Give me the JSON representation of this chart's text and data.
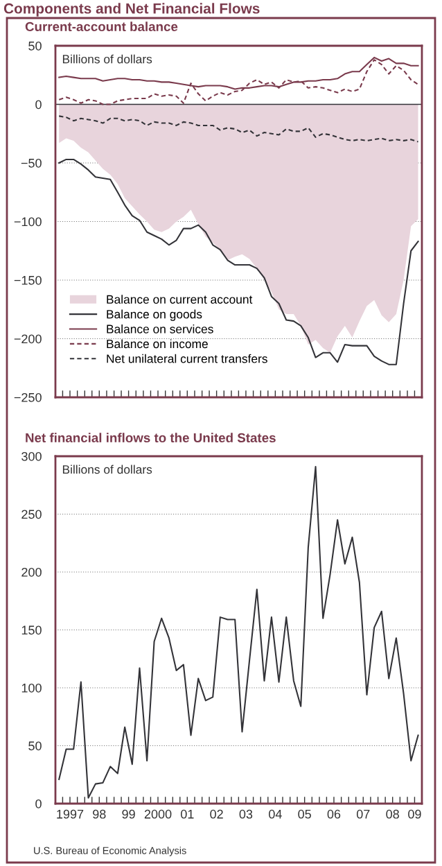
{
  "chart_data": [
    {
      "type": "line",
      "title": "Components and Net Financial Flows",
      "subtitle": "Current-account balance",
      "ylabel": "Billions of dollars",
      "x": [
        "1997-02-15",
        "1997-05-15",
        "1997-08-15",
        "1997-11-15",
        "1998-02-15",
        "1998-05-15",
        "1998-08-15",
        "1998-11-15",
        "1999-02-15",
        "1999-05-15",
        "1999-08-15",
        "1999-11-15",
        "2000-02-15",
        "2000-05-15",
        "2000-08-15",
        "2000-11-15",
        "2001-02-15",
        "2001-05-15",
        "2001-08-15",
        "2001-11-15",
        "2002-02-15",
        "2002-05-15",
        "2002-08-15",
        "2002-11-15",
        "2003-02-15",
        "2003-05-15",
        "2003-08-15",
        "2003-11-15",
        "2004-02-15",
        "2004-05-15",
        "2004-08-15",
        "2004-11-15",
        "2005-02-15",
        "2005-05-15",
        "2005-08-15",
        "2005-11-15",
        "2006-02-15",
        "2006-05-15",
        "2006-08-15",
        "2006-11-15",
        "2007-02-15",
        "2007-05-15",
        "2007-08-15",
        "2007-11-15",
        "2008-02-15",
        "2008-05-15",
        "2008-08-15",
        "2008-11-15",
        "2009-02-15",
        "2009-05-15"
      ],
      "series": [
        {
          "name": "Balance on current account",
          "type": "area",
          "color": "#e8d4dc",
          "values": [
            -33,
            -29,
            -31,
            -37,
            -41,
            -48,
            -55,
            -60,
            -68,
            -80,
            -87,
            -94,
            -100,
            -107,
            -109,
            -106,
            -100,
            -96,
            -90,
            -102,
            -113,
            -118,
            -124,
            -133,
            -130,
            -128,
            -132,
            -140,
            -150,
            -160,
            -175,
            -179,
            -179,
            -189,
            -205,
            -201,
            -208,
            -212,
            -198,
            -189,
            -199,
            -185,
            -172,
            -167,
            -180,
            -186,
            -179,
            -150,
            -104,
            -98
          ]
        },
        {
          "name": "Balance on goods",
          "type": "line",
          "color": "#333338",
          "line_style": "solid",
          "values": [
            -50,
            -47,
            -47,
            -51,
            -56,
            -62,
            -63,
            -64,
            -75,
            -86,
            -95,
            -99,
            -109,
            -112,
            -115,
            -120,
            -116,
            -106,
            -106,
            -103,
            -109,
            -120,
            -124,
            -133,
            -137,
            -137,
            -137,
            -140,
            -148,
            -164,
            -170,
            -184,
            -185,
            -189,
            -199,
            -216,
            -212,
            -212,
            -220,
            -205,
            -206,
            -206,
            -206,
            -215,
            -219,
            -222,
            -222,
            -170,
            -125,
            -117
          ]
        },
        {
          "name": "Balance on services",
          "type": "line",
          "color": "#7a3a4c",
          "line_style": "solid",
          "values": [
            23,
            24,
            23,
            22,
            22,
            22,
            20,
            21,
            22,
            22,
            21,
            21,
            20,
            20,
            19,
            19,
            18,
            17,
            16,
            15,
            16,
            16,
            16,
            15,
            13,
            14,
            14,
            15,
            16,
            16,
            15,
            17,
            19,
            19,
            20,
            20,
            21,
            21,
            22,
            26,
            28,
            28,
            34,
            40,
            37,
            39,
            35,
            35,
            33,
            33
          ]
        },
        {
          "name": "Balance on income",
          "type": "line",
          "color": "#7a3a4c",
          "line_style": "dashed",
          "values": [
            4,
            6,
            4,
            1,
            4,
            3,
            0,
            0,
            3,
            4,
            5,
            5,
            5,
            9,
            7,
            8,
            7,
            1,
            18,
            9,
            3,
            7,
            10,
            8,
            11,
            12,
            18,
            21,
            17,
            19,
            14,
            21,
            19,
            20,
            14,
            15,
            14,
            12,
            10,
            13,
            11,
            13,
            28,
            38,
            34,
            26,
            33,
            29,
            21,
            17
          ]
        },
        {
          "name": "Net unilateral current transfers",
          "type": "line",
          "color": "#333338",
          "line_style": "dashed",
          "values": [
            -10,
            -11,
            -14,
            -12,
            -13,
            -14,
            -16,
            -12,
            -12,
            -14,
            -13,
            -14,
            -18,
            -15,
            -16,
            -16,
            -18,
            -15,
            -16,
            -18,
            -18,
            -18,
            -22,
            -20,
            -21,
            -24,
            -22,
            -27,
            -24,
            -25,
            -26,
            -21,
            -23,
            -23,
            -20,
            -28,
            -25,
            -26,
            -28,
            -30,
            -31,
            -30,
            -31,
            -30,
            -29,
            -31,
            -30,
            -31,
            -30,
            -32
          ]
        }
      ],
      "xlim": [
        "1997-01-01",
        "2009-07-01"
      ],
      "ylim": [
        -250,
        50
      ],
      "yticks": [
        -250,
        -200,
        -150,
        -100,
        -50,
        0,
        50
      ],
      "xticks": [
        {
          "value": "1997-04-01",
          "label": null
        },
        {
          "value": "1997-07-01",
          "label": null
        },
        {
          "value": "1997-10-01",
          "label": null
        },
        {
          "value": "1998-01-01",
          "label": null
        },
        {
          "value": "1998-04-01",
          "label": null
        },
        {
          "value": "1998-07-01",
          "label": null
        },
        {
          "value": "1998-10-01",
          "label": null
        },
        {
          "value": "1999-01-01",
          "label": null
        },
        {
          "value": "1999-04-01",
          "label": null
        },
        {
          "value": "1999-07-01",
          "label": null
        },
        {
          "value": "1999-10-01",
          "label": null
        },
        {
          "value": "2000-01-01",
          "label": null
        },
        {
          "value": "2000-04-01",
          "label": null
        },
        {
          "value": "2000-07-01",
          "label": null
        },
        {
          "value": "2000-10-01",
          "label": null
        },
        {
          "value": "2001-01-01",
          "label": null
        },
        {
          "value": "2001-04-01",
          "label": null
        },
        {
          "value": "2001-07-01",
          "label": null
        },
        {
          "value": "2001-10-01",
          "label": null
        },
        {
          "value": "2002-01-01",
          "label": null
        },
        {
          "value": "2002-04-01",
          "label": null
        },
        {
          "value": "2002-07-01",
          "label": null
        },
        {
          "value": "2002-10-01",
          "label": null
        },
        {
          "value": "2003-01-01",
          "label": null
        },
        {
          "value": "2003-04-01",
          "label": null
        },
        {
          "value": "2003-07-01",
          "label": null
        },
        {
          "value": "2003-10-01",
          "label": null
        },
        {
          "value": "2004-01-01",
          "label": null
        },
        {
          "value": "2004-04-01",
          "label": null
        },
        {
          "value": "2004-07-01",
          "label": null
        },
        {
          "value": "2004-10-01",
          "label": null
        },
        {
          "value": "2005-01-01",
          "label": null
        },
        {
          "value": "2005-04-01",
          "label": null
        },
        {
          "value": "2005-07-01",
          "label": null
        },
        {
          "value": "2005-10-01",
          "label": null
        },
        {
          "value": "2006-01-01",
          "label": null
        },
        {
          "value": "2006-04-01",
          "label": null
        },
        {
          "value": "2006-07-01",
          "label": null
        },
        {
          "value": "2006-10-01",
          "label": null
        },
        {
          "value": "2007-01-01",
          "label": null
        },
        {
          "value": "2007-04-01",
          "label": null
        },
        {
          "value": "2007-07-01",
          "label": null
        },
        {
          "value": "2007-10-01",
          "label": null
        },
        {
          "value": "2008-01-01",
          "label": null
        },
        {
          "value": "2008-04-01",
          "label": null
        },
        {
          "value": "2008-07-01",
          "label": null
        },
        {
          "value": "2008-10-01",
          "label": null
        },
        {
          "value": "2009-01-01",
          "label": null
        },
        {
          "value": "2009-04-01",
          "label": null
        }
      ],
      "tick_labels": "y",
      "grid": "y",
      "legend": "lower left",
      "ref_lines": [
        {
          "axis": "y",
          "value": 0,
          "color": "#333338",
          "line_style": "solid"
        }
      ]
    },
    {
      "type": "line",
      "title": "Net financial inflows to the United States",
      "ylabel": "Billions of dollars",
      "x": [
        "1997-02-15",
        "1997-05-15",
        "1997-08-15",
        "1997-11-15",
        "1998-02-15",
        "1998-05-15",
        "1998-08-15",
        "1998-11-15",
        "1999-02-15",
        "1999-05-15",
        "1999-08-15",
        "1999-11-15",
        "2000-02-15",
        "2000-05-15",
        "2000-08-15",
        "2000-11-15",
        "2001-02-15",
        "2001-05-15",
        "2001-08-15",
        "2001-11-15",
        "2002-02-15",
        "2002-05-15",
        "2002-08-15",
        "2002-11-15",
        "2003-02-15",
        "2003-05-15",
        "2003-08-15",
        "2003-11-15",
        "2004-02-15",
        "2004-05-15",
        "2004-08-15",
        "2004-11-15",
        "2005-02-15",
        "2005-05-15",
        "2005-08-15",
        "2005-11-15",
        "2006-02-15",
        "2006-05-15",
        "2006-08-15",
        "2006-11-15",
        "2007-02-15",
        "2007-05-15",
        "2007-08-15",
        "2007-11-15",
        "2008-02-15",
        "2008-05-15",
        "2008-08-15",
        "2008-11-15",
        "2009-02-15",
        "2009-05-15"
      ],
      "series": [
        {
          "color": "#333338",
          "values": [
            21,
            47,
            47,
            105,
            5,
            17,
            18,
            32,
            26,
            66,
            34,
            117,
            37,
            140,
            160,
            143,
            115,
            120,
            59,
            108,
            89,
            92,
            161,
            159,
            159,
            62,
            124,
            185,
            106,
            161,
            105,
            161,
            106,
            84,
            221,
            291,
            160,
            198,
            245,
            207,
            230,
            191,
            94,
            152,
            166,
            108,
            143,
            95,
            37,
            59
          ]
        }
      ],
      "xlim": [
        "1997-01-01",
        "2009-07-01"
      ],
      "ylim": [
        0,
        300
      ],
      "yticks": [
        0,
        50,
        100,
        150,
        200,
        250,
        300
      ],
      "xticks": [
        {
          "value": "1997-04-01",
          "label": null
        },
        {
          "value": "1997-07-01",
          "label": "1997"
        },
        {
          "value": "1997-10-01",
          "label": null
        },
        {
          "value": "1998-01-01",
          "label": null
        },
        {
          "value": "1998-04-01",
          "label": null
        },
        {
          "value": "1998-07-01",
          "label": "98"
        },
        {
          "value": "1998-10-01",
          "label": null
        },
        {
          "value": "1999-01-01",
          "label": null
        },
        {
          "value": "1999-04-01",
          "label": null
        },
        {
          "value": "1999-07-01",
          "label": "99"
        },
        {
          "value": "1999-10-01",
          "label": null
        },
        {
          "value": "2000-01-01",
          "label": null
        },
        {
          "value": "2000-04-01",
          "label": null
        },
        {
          "value": "2000-07-01",
          "label": "2000"
        },
        {
          "value": "2000-10-01",
          "label": null
        },
        {
          "value": "2001-01-01",
          "label": null
        },
        {
          "value": "2001-04-01",
          "label": null
        },
        {
          "value": "2001-07-01",
          "label": "01"
        },
        {
          "value": "2001-10-01",
          "label": null
        },
        {
          "value": "2002-01-01",
          "label": null
        },
        {
          "value": "2002-04-01",
          "label": null
        },
        {
          "value": "2002-07-01",
          "label": "02"
        },
        {
          "value": "2002-10-01",
          "label": null
        },
        {
          "value": "2003-01-01",
          "label": null
        },
        {
          "value": "2003-04-01",
          "label": null
        },
        {
          "value": "2003-07-01",
          "label": "03"
        },
        {
          "value": "2003-10-01",
          "label": null
        },
        {
          "value": "2004-01-01",
          "label": null
        },
        {
          "value": "2004-04-01",
          "label": null
        },
        {
          "value": "2004-07-01",
          "label": "04"
        },
        {
          "value": "2004-10-01",
          "label": null
        },
        {
          "value": "2005-01-01",
          "label": null
        },
        {
          "value": "2005-04-01",
          "label": null
        },
        {
          "value": "2005-07-01",
          "label": "05"
        },
        {
          "value": "2005-10-01",
          "label": null
        },
        {
          "value": "2006-01-01",
          "label": null
        },
        {
          "value": "2006-04-01",
          "label": null
        },
        {
          "value": "2006-07-01",
          "label": "06"
        },
        {
          "value": "2006-10-01",
          "label": null
        },
        {
          "value": "2007-01-01",
          "label": null
        },
        {
          "value": "2007-04-01",
          "label": null
        },
        {
          "value": "2007-07-01",
          "label": "07"
        },
        {
          "value": "2007-10-01",
          "label": null
        },
        {
          "value": "2008-01-01",
          "label": null
        },
        {
          "value": "2008-04-01",
          "label": null
        },
        {
          "value": "2008-07-01",
          "label": "08"
        },
        {
          "value": "2008-10-01",
          "label": null
        },
        {
          "value": "2009-01-01",
          "label": null
        },
        {
          "value": "2009-04-01",
          "label": "09"
        }
      ],
      "grid": "y",
      "annotations": [
        "U.S. Bureau of Economic Analysis"
      ]
    }
  ]
}
